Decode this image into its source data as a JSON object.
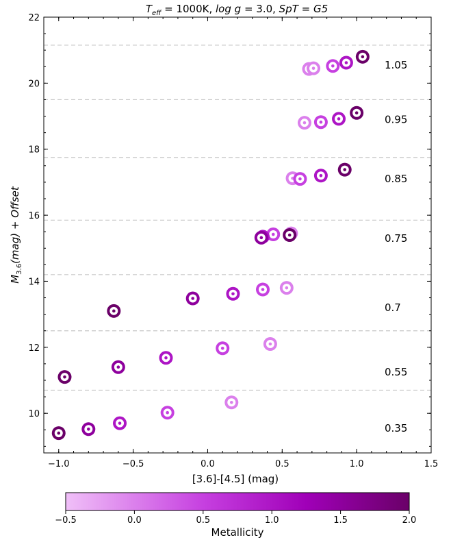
{
  "chart_data": {
    "type": "scatter",
    "title": "T_eff = 1000K, log g = 3.0, SpT = G5",
    "title_parts": {
      "teff": "T",
      "teff_sub": "eff",
      "teff_rest": " = 1000K, ",
      "logg": "log g",
      "logg_rest": " = 3.0, ",
      "spt": "SpT",
      "spt_rest": " = G5"
    },
    "xlabel": "[3.6]-[4.5] (mag)",
    "ylabel": "M_3.6(mag) + Offset",
    "ylabel_parts": {
      "m": "M",
      "sub": "3.6",
      "rest": "(mag) + Offset"
    },
    "xlim": [
      -1.1,
      1.5
    ],
    "ylim": [
      8.8,
      22
    ],
    "x_ticks": [
      -1.0,
      -0.5,
      0.0,
      0.5,
      1.0,
      1.5
    ],
    "x_tick_labels": [
      "−1.0",
      "−0.5",
      "0.0",
      "0.5",
      "1.0",
      "1.5"
    ],
    "y_ticks": [
      10,
      12,
      14,
      16,
      18,
      20,
      22
    ],
    "y_tick_labels": [
      "10",
      "12",
      "14",
      "16",
      "18",
      "20",
      "22"
    ],
    "separators_y": [
      10.7,
      12.5,
      14.2,
      15.85,
      17.75,
      19.5,
      21.15
    ],
    "grid": false,
    "colorbar": {
      "label": "Metallicity",
      "range": [
        -0.5,
        2.0
      ],
      "ticks": [
        -0.5,
        0.0,
        0.5,
        1.0,
        1.5,
        2.0
      ],
      "tick_labels": [
        "−0.5",
        "0.0",
        "0.5",
        "1.0",
        "1.5",
        "2.0"
      ],
      "colors": [
        "#f0c0f8",
        "#c640e0",
        "#a000b8",
        "#6a0068"
      ]
    },
    "groups": [
      {
        "label": "0.35",
        "label_y": 9.55,
        "points": [
          {
            "x": -1.0,
            "y": 9.4,
            "metallicity": 2.0
          },
          {
            "x": -0.8,
            "y": 9.52,
            "metallicity": 1.5
          },
          {
            "x": -0.59,
            "y": 9.7,
            "metallicity": 1.0
          },
          {
            "x": -0.27,
            "y": 10.02,
            "metallicity": 0.5
          },
          {
            "x": 0.16,
            "y": 10.33,
            "metallicity": 0.0
          }
        ]
      },
      {
        "label": "0.55",
        "label_y": 11.25,
        "points": [
          {
            "x": -0.96,
            "y": 11.1,
            "metallicity": 2.0
          },
          {
            "x": -0.6,
            "y": 11.4,
            "metallicity": 1.5
          },
          {
            "x": -0.28,
            "y": 11.68,
            "metallicity": 1.0
          },
          {
            "x": 0.1,
            "y": 11.97,
            "metallicity": 0.5
          },
          {
            "x": 0.42,
            "y": 12.1,
            "metallicity": 0.0
          }
        ]
      },
      {
        "label": "0.7",
        "label_y": 13.2,
        "points": [
          {
            "x": -0.63,
            "y": 13.1,
            "metallicity": 2.0
          },
          {
            "x": -0.1,
            "y": 13.48,
            "metallicity": 1.5
          },
          {
            "x": 0.17,
            "y": 13.62,
            "metallicity": 1.0
          },
          {
            "x": 0.37,
            "y": 13.75,
            "metallicity": 0.5
          },
          {
            "x": 0.53,
            "y": 13.8,
            "metallicity": 0.0
          }
        ]
      },
      {
        "label": "0.75",
        "label_y": 15.3,
        "points": [
          {
            "x": 0.36,
            "y": 15.32,
            "metallicity": 1.5
          },
          {
            "x": 0.37,
            "y": 15.35,
            "metallicity": 1.0
          },
          {
            "x": 0.44,
            "y": 15.42,
            "metallicity": 0.5
          },
          {
            "x": 0.56,
            "y": 15.45,
            "metallicity": 0.0
          },
          {
            "x": 0.55,
            "y": 15.4,
            "metallicity": 2.0
          }
        ]
      },
      {
        "label": "0.85",
        "label_y": 17.1,
        "points": [
          {
            "x": 0.57,
            "y": 17.12,
            "metallicity": 0.0
          },
          {
            "x": 0.62,
            "y": 17.1,
            "metallicity": 0.5
          },
          {
            "x": 0.76,
            "y": 17.2,
            "metallicity": 1.0
          },
          {
            "x": 0.92,
            "y": 17.38,
            "metallicity": 2.0
          }
        ]
      },
      {
        "label": "0.95",
        "label_y": 18.9,
        "points": [
          {
            "x": 0.65,
            "y": 18.8,
            "metallicity": 0.0
          },
          {
            "x": 0.76,
            "y": 18.82,
            "metallicity": 0.5
          },
          {
            "x": 0.88,
            "y": 18.92,
            "metallicity": 1.0
          },
          {
            "x": 1.0,
            "y": 19.1,
            "metallicity": 2.0
          }
        ]
      },
      {
        "label": "1.05",
        "label_y": 20.55,
        "points": [
          {
            "x": 0.68,
            "y": 20.43,
            "metallicity": 0.0
          },
          {
            "x": 0.71,
            "y": 20.45,
            "metallicity": 0.0
          },
          {
            "x": 0.84,
            "y": 20.52,
            "metallicity": 0.5
          },
          {
            "x": 0.93,
            "y": 20.62,
            "metallicity": 1.0
          },
          {
            "x": 1.04,
            "y": 20.8,
            "metallicity": 2.0
          }
        ]
      }
    ]
  }
}
